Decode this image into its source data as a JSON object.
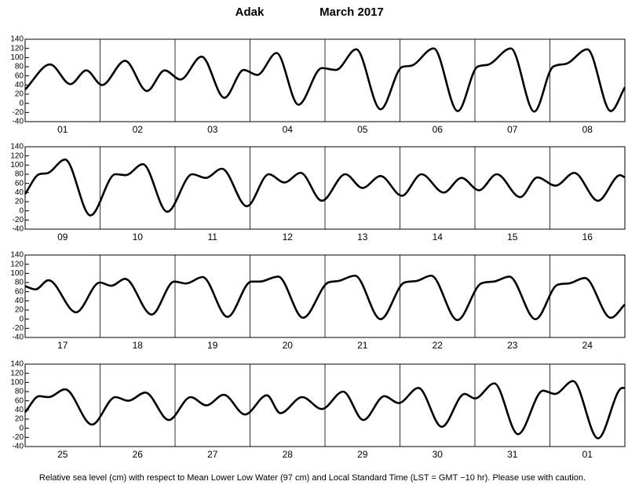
{
  "chart_data": [
    {
      "type": "line",
      "title": "Adak",
      "subtitle": "March 2017",
      "caption": "Relative sea level (cm) with respect to Mean Lower Low Water (97 cm) and Local Standard Time (LST = GMT −10 hr). Please use with caution.",
      "x": [
        0,
        8,
        14.5,
        19.6,
        24.6,
        32,
        39,
        44.7,
        49.7,
        56.5,
        63.8,
        70,
        74.3,
        80.5,
        87.5,
        95,
        99.5,
        106,
        113.8,
        120.6,
        123.5,
        130.8,
        138.5,
        144.8,
        148,
        155.5,
        163,
        169,
        173,
        180,
        187.5,
        192
      ],
      "series": [
        {
          "color": "#000000",
          "values": [
            30,
            85,
            42,
            72,
            40,
            93,
            27,
            72,
            52,
            102,
            12,
            73,
            62,
            110,
            -3,
            77,
            73,
            118,
            -13,
            79,
            82,
            120,
            -17,
            80,
            84,
            120,
            -18,
            80,
            86,
            118,
            -17,
            35
          ]
        }
      ],
      "categories": [
        "01",
        "02",
        "03",
        "04",
        "05",
        "06",
        "07",
        "08"
      ],
      "xlim": [
        0,
        192
      ],
      "xticks": [
        24,
        48,
        72,
        96,
        120,
        144,
        168
      ],
      "ylim": [
        -40,
        140
      ],
      "yticks": [
        -40,
        -20,
        0,
        20,
        40,
        60,
        80,
        100,
        120,
        140
      ]
    },
    {
      "type": "line",
      "x": [
        0,
        4.5,
        7,
        12.8,
        20.9,
        28.9,
        32.2,
        37.7,
        45.5,
        53.5,
        57.8,
        63,
        71,
        78,
        83,
        88.2,
        95,
        102.5,
        108,
        113.8,
        120.6,
        126.9,
        134,
        139.7,
        145.3,
        151,
        158.5,
        164,
        169.8,
        175.8,
        183.4,
        190.5,
        192
      ],
      "series": [
        {
          "color": "#000000",
          "values": [
            37,
            80,
            82,
            112,
            -10,
            80,
            78,
            102,
            -2,
            80,
            72,
            92,
            10,
            80,
            62,
            83,
            22,
            80,
            50,
            76,
            33,
            80,
            40,
            72,
            45,
            80,
            30,
            73,
            55,
            83,
            22,
            78,
            73
          ]
        }
      ],
      "categories": [
        "09",
        "10",
        "11",
        "12",
        "13",
        "14",
        "15",
        "16"
      ],
      "xlim": [
        0,
        192
      ],
      "xticks": [
        24,
        48,
        72,
        96,
        120,
        144,
        168
      ],
      "ylim": [
        -40,
        140
      ],
      "yticks": [
        -40,
        -20,
        0,
        20,
        40,
        60,
        80,
        100,
        120,
        140
      ]
    },
    {
      "type": "line",
      "x": [
        0,
        3.3,
        7.5,
        16.3,
        23.9,
        27.6,
        32,
        40.5,
        47.7,
        51.5,
        56.8,
        64.8,
        72.4,
        75,
        81,
        89,
        97,
        100,
        105.6,
        113.8,
        121.4,
        125,
        130,
        138.4,
        146,
        150,
        155,
        163.4,
        170.4,
        174,
        179.2,
        187.5,
        192
      ],
      "series": [
        {
          "color": "#000000",
          "values": [
            72,
            65,
            85,
            15,
            80,
            73,
            88,
            10,
            82,
            78,
            92,
            5,
            82,
            82,
            93,
            3,
            80,
            83,
            95,
            0,
            80,
            83,
            95,
            -2,
            78,
            82,
            93,
            0,
            75,
            78,
            90,
            3,
            32
          ]
        }
      ],
      "categories": [
        "17",
        "18",
        "19",
        "20",
        "21",
        "22",
        "23",
        "24"
      ],
      "xlim": [
        0,
        192
      ],
      "xticks": [
        24,
        48,
        72,
        96,
        120,
        144,
        168
      ],
      "ylim": [
        -40,
        140
      ],
      "yticks": [
        -40,
        -20,
        0,
        20,
        40,
        60,
        80,
        100,
        120,
        140
      ]
    },
    {
      "type": "line",
      "x": [
        0,
        4.5,
        7.5,
        12.8,
        21.4,
        28.9,
        33,
        38.5,
        46,
        53,
        58,
        63.6,
        70.4,
        77.4,
        81.7,
        88.7,
        95,
        101.8,
        108.3,
        115,
        119.6,
        125.9,
        133.4,
        140.7,
        144,
        150.2,
        157.8,
        165.8,
        169.6,
        175.4,
        183.4,
        191.2,
        192
      ],
      "series": [
        {
          "color": "#000000",
          "values": [
            35,
            70,
            68,
            85,
            8,
            68,
            60,
            78,
            18,
            68,
            50,
            73,
            30,
            72,
            33,
            68,
            42,
            80,
            18,
            70,
            55,
            88,
            3,
            75,
            65,
            98,
            -13,
            82,
            75,
            103,
            -22,
            88,
            88
          ]
        }
      ],
      "categories": [
        "25",
        "26",
        "27",
        "28",
        "29",
        "30",
        "31",
        "01"
      ],
      "xlim": [
        0,
        192
      ],
      "xticks": [
        24,
        48,
        72,
        96,
        120,
        144,
        168
      ],
      "ylim": [
        -40,
        140
      ],
      "yticks": [
        -40,
        -20,
        0,
        20,
        40,
        60,
        80,
        100,
        120,
        140
      ]
    }
  ]
}
